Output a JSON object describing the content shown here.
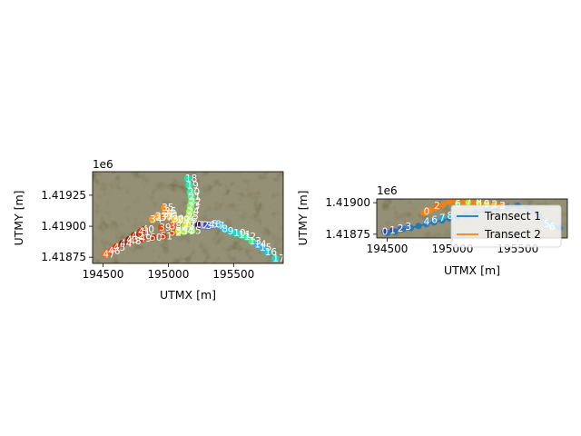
{
  "chart_data": [
    {
      "type": "scatter",
      "title": "",
      "xlabel": "UTMX [m]",
      "ylabel": "UTMY [m]",
      "y_offset_label": "1e6",
      "xlim": [
        194420,
        195880
      ],
      "ylim": [
        1418700,
        1419440
      ],
      "x_ticks": [
        194500,
        195000,
        195500
      ],
      "x_tick_labels": [
        "194500",
        "195000",
        "195500"
      ],
      "y_ticks": [
        1418750,
        1419000,
        1419250
      ],
      "y_tick_labels": [
        "1.41875",
        "1.41900",
        "1.41925"
      ],
      "background": "satellite imagery",
      "points": [
        {
          "label": "0",
          "x": 195235,
          "y": 1419010,
          "color": "#30123b"
        },
        {
          "label": "1",
          "x": 195260,
          "y": 1419008,
          "color": "#3a2c79"
        },
        {
          "label": "2",
          "x": 195285,
          "y": 1419006,
          "color": "#4145ab"
        },
        {
          "label": "3",
          "x": 195310,
          "y": 1419004,
          "color": "#4661d6"
        },
        {
          "label": "4",
          "x": 195330,
          "y": 1419010,
          "color": "#4777ef"
        },
        {
          "label": "5",
          "x": 195355,
          "y": 1419015,
          "color": "#4490fe"
        },
        {
          "label": "6",
          "x": 195380,
          "y": 1419015,
          "color": "#3aa1fc"
        },
        {
          "label": "7",
          "x": 195405,
          "y": 1419005,
          "color": "#2ab5f5"
        },
        {
          "label": "8",
          "x": 195430,
          "y": 1418980,
          "color": "#1ec8e2"
        },
        {
          "label": "9",
          "x": 195475,
          "y": 1418960,
          "color": "#1bd0d5"
        },
        {
          "label": "10",
          "x": 195520,
          "y": 1418945,
          "color": "#1fd9c4"
        },
        {
          "label": "11",
          "x": 195560,
          "y": 1418930,
          "color": "#28e2ae"
        },
        {
          "label": "12",
          "x": 195600,
          "y": 1418915,
          "color": "#33ea98"
        },
        {
          "label": "13",
          "x": 195640,
          "y": 1418880,
          "color": "#3ff282"
        },
        {
          "label": "14",
          "x": 195680,
          "y": 1418855,
          "color": "#3fa6f8"
        },
        {
          "label": "15",
          "x": 195720,
          "y": 1418830,
          "color": "#2fb6ee"
        },
        {
          "label": "16",
          "x": 195760,
          "y": 1418790,
          "color": "#26c4e0"
        },
        {
          "label": "17",
          "x": 195820,
          "y": 1418740,
          "color": "#18d6cb"
        },
        {
          "label": "18",
          "x": 195150,
          "y": 1419385,
          "color": "#1ae4b6"
        },
        {
          "label": "19",
          "x": 195160,
          "y": 1419330,
          "color": "#22eba4"
        },
        {
          "label": "20",
          "x": 195170,
          "y": 1419275,
          "color": "#32f197"
        },
        {
          "label": "21",
          "x": 195175,
          "y": 1419240,
          "color": "#45f785"
        },
        {
          "label": "22",
          "x": 195180,
          "y": 1419200,
          "color": "#5dfb6d"
        },
        {
          "label": "23",
          "x": 195170,
          "y": 1419160,
          "color": "#78fe59"
        },
        {
          "label": "24",
          "x": 195165,
          "y": 1419120,
          "color": "#93fe45"
        },
        {
          "label": "25",
          "x": 195160,
          "y": 1419080,
          "color": "#a4fc3c"
        },
        {
          "label": "26",
          "x": 195150,
          "y": 1419050,
          "color": "#b5f836"
        },
        {
          "label": "27",
          "x": 195140,
          "y": 1419020,
          "color": "#c5ef33"
        },
        {
          "label": "28",
          "x": 195130,
          "y": 1419000,
          "color": "#d5e435"
        },
        {
          "label": "29",
          "x": 195090,
          "y": 1419050,
          "color": "#e2d936"
        },
        {
          "label": "30",
          "x": 195050,
          "y": 1419060,
          "color": "#eecf3a"
        },
        {
          "label": "31",
          "x": 195010,
          "y": 1419080,
          "color": "#f8c13a"
        },
        {
          "label": "32",
          "x": 194980,
          "y": 1419100,
          "color": "#fdb332"
        },
        {
          "label": "33",
          "x": 194920,
          "y": 1419080,
          "color": "#fea62b"
        },
        {
          "label": "34",
          "x": 194880,
          "y": 1419055,
          "color": "#fd9a25"
        },
        {
          "label": "35",
          "x": 194970,
          "y": 1419150,
          "color": "#fb8b1f"
        },
        {
          "label": "36",
          "x": 194990,
          "y": 1419120,
          "color": "#f57b18"
        },
        {
          "label": "37",
          "x": 194960,
          "y": 1419070,
          "color": "#ee6b13"
        },
        {
          "label": "38",
          "x": 195030,
          "y": 1419000,
          "color": "#e55c0e"
        },
        {
          "label": "39",
          "x": 194950,
          "y": 1418990,
          "color": "#da4d0b"
        },
        {
          "label": "40",
          "x": 194820,
          "y": 1418975,
          "color": "#ce4007"
        },
        {
          "label": "41",
          "x": 194790,
          "y": 1418955,
          "color": "#c23505"
        },
        {
          "label": "42",
          "x": 194740,
          "y": 1418925,
          "color": "#b42a03"
        },
        {
          "label": "43",
          "x": 194700,
          "y": 1418890,
          "color": "#a72102"
        },
        {
          "label": "44",
          "x": 194650,
          "y": 1418860,
          "color": "#991902"
        },
        {
          "label": "45",
          "x": 194600,
          "y": 1418830,
          "color": "#e43e07"
        },
        {
          "label": "46",
          "x": 194560,
          "y": 1418800,
          "color": "#ef5911"
        },
        {
          "label": "47",
          "x": 194520,
          "y": 1418775,
          "color": "#f76a16"
        },
        {
          "label": "48",
          "x": 194720,
          "y": 1418880,
          "color": "#e1440a"
        },
        {
          "label": "49",
          "x": 194800,
          "y": 1418900,
          "color": "#d43808"
        },
        {
          "label": "50",
          "x": 194880,
          "y": 1418910,
          "color": "#c92e05"
        },
        {
          "label": "51",
          "x": 194960,
          "y": 1418920,
          "color": "#e5350b"
        },
        {
          "label": "52",
          "x": 195030,
          "y": 1418950,
          "color": "#f0420f"
        },
        {
          "label": "53",
          "x": 195080,
          "y": 1418960,
          "color": "#c8ef34"
        },
        {
          "label": "54",
          "x": 195120,
          "y": 1418960,
          "color": "#9efd3e"
        },
        {
          "label": "55",
          "x": 195180,
          "y": 1418965,
          "color": "#84ff50"
        }
      ]
    },
    {
      "type": "scatter",
      "title": "",
      "xlabel": "UTMX [m]",
      "ylabel": "UTMY [m]",
      "y_offset_label": "1e6",
      "xlim": [
        194420,
        195880
      ],
      "ylim": [
        1418720,
        1419030
      ],
      "x_ticks": [
        194500,
        195000,
        195500
      ],
      "x_tick_labels": [
        "194500",
        "195000",
        "195500"
      ],
      "y_ticks": [
        1418750,
        1419000
      ],
      "y_tick_labels": [
        "1.41875",
        "1.41900"
      ],
      "background": "satellite imagery",
      "legend": {
        "placement": "right",
        "entries": [
          {
            "label": "Transect 1",
            "color": "#1f77b4"
          },
          {
            "label": "Transect 2",
            "color": "#ff7f0e"
          }
        ]
      },
      "series": [
        {
          "name": "Transect 1",
          "color": "#1f77b4",
          "x": [
            194500,
            194560,
            194620,
            194680,
            194740,
            194800,
            194860,
            194920,
            194980,
            195040,
            195100,
            195180,
            195260,
            195340,
            195420,
            195500,
            195580,
            195660,
            195740,
            195820
          ],
          "y": [
            1418760,
            1418770,
            1418790,
            1418800,
            1418815,
            1418830,
            1418845,
            1418860,
            1418875,
            1418890,
            1418905,
            1418920,
            1418935,
            1418950,
            1418965,
            1418975,
            1418960,
            1418900,
            1418840,
            1418800
          ]
        },
        {
          "name": "Transect 2",
          "color": "#ff7f0e",
          "x": [
            194780,
            194830,
            194880,
            194930,
            194980,
            195030,
            195090,
            195150,
            195210,
            195270,
            195330,
            195380
          ],
          "y": [
            1418920,
            1418940,
            1418960,
            1418985,
            1419005,
            1419010,
            1419005,
            1419000,
            1418995,
            1418990,
            1418985,
            1418980
          ]
        }
      ],
      "point_labels": [
        {
          "label": "0",
          "x": 194480,
          "y": 1418770,
          "color": "#3b3a9b"
        },
        {
          "label": "1",
          "x": 194540,
          "y": 1418780,
          "color": "#4051b5"
        },
        {
          "label": "2",
          "x": 194600,
          "y": 1418795,
          "color": "#4564cf"
        },
        {
          "label": "3",
          "x": 194660,
          "y": 1418810,
          "color": "#4777e5"
        },
        {
          "label": "4",
          "x": 194800,
          "y": 1418850,
          "color": "#3b8cf0"
        },
        {
          "label": "6",
          "x": 194860,
          "y": 1418865,
          "color": "#2b9df0"
        },
        {
          "label": "7",
          "x": 194920,
          "y": 1418880,
          "color": "#20aee8"
        },
        {
          "label": "8",
          "x": 194980,
          "y": 1418895,
          "color": "#1ec1d8"
        },
        {
          "label": "0",
          "x": 194800,
          "y": 1418930,
          "color": "#ff7f0e"
        },
        {
          "label": "2",
          "x": 194880,
          "y": 1418975,
          "color": "#f56b10"
        },
        {
          "label": "6",
          "x": 195040,
          "y": 1418990,
          "color": "#7ef85a"
        },
        {
          "label": "7",
          "x": 195120,
          "y": 1419000,
          "color": "#9efd3e"
        },
        {
          "label": "8",
          "x": 195200,
          "y": 1419000,
          "color": "#c8ef34"
        },
        {
          "label": "9",
          "x": 195260,
          "y": 1418990,
          "color": "#e3d936"
        },
        {
          "label": "2",
          "x": 195320,
          "y": 1418985,
          "color": "#f8bf3a"
        },
        {
          "label": "3",
          "x": 195380,
          "y": 1418975,
          "color": "#fda02c"
        },
        {
          "label": "5",
          "x": 195720,
          "y": 1418830,
          "color": "#27c1e1"
        },
        {
          "label": "6",
          "x": 195760,
          "y": 1418810,
          "color": "#20cfd0"
        }
      ]
    }
  ]
}
